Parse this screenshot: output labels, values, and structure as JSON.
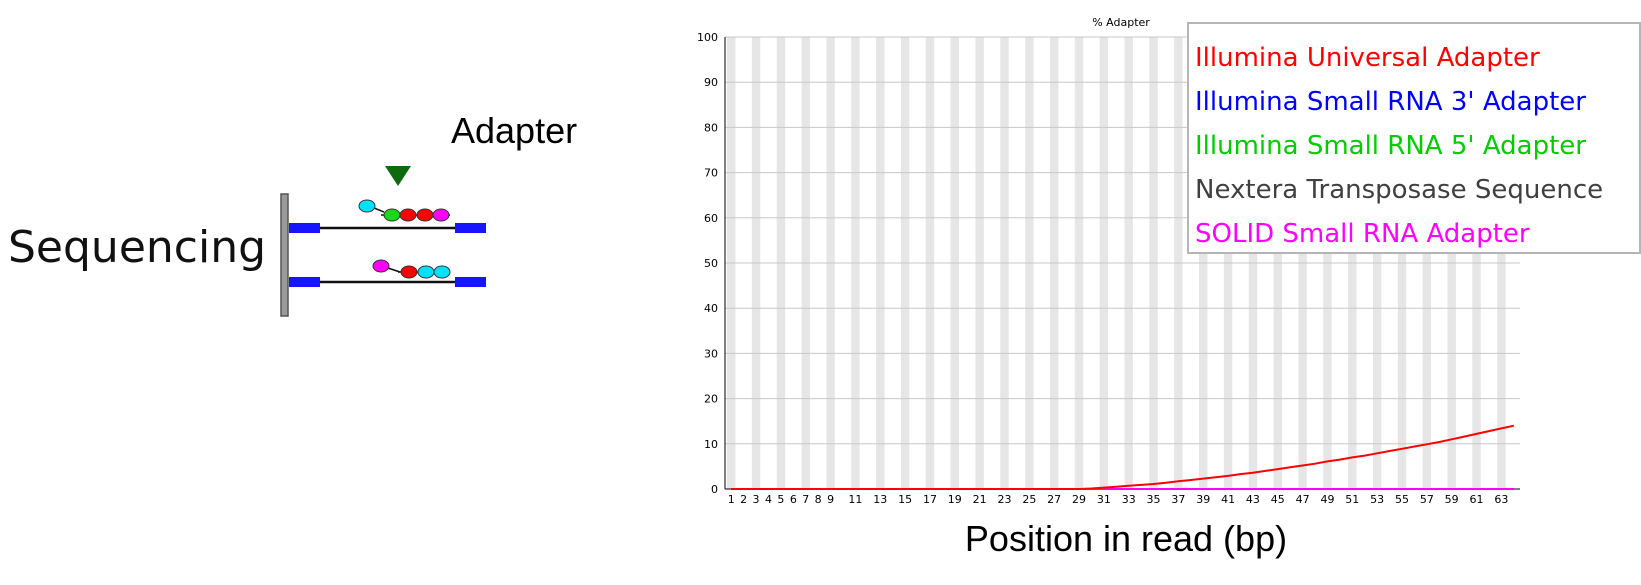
{
  "schematic": {
    "sequencing_label": "Sequencing",
    "adapter_label": "Adapter",
    "colors": {
      "frame": "#7a7a7a",
      "block": "#1515ff",
      "strand": "#111111",
      "marker": "#0d6b0d",
      "beads": [
        "#ff0000",
        "#19d819",
        "#00e0ff",
        "#ff00ff"
      ]
    }
  },
  "chart_data": {
    "type": "line",
    "title": "% Adapter",
    "xlabel": "Position in read (bp)",
    "ylabel": "",
    "ylim": [
      0,
      100
    ],
    "yticks": [
      0,
      10,
      20,
      30,
      40,
      50,
      60,
      70,
      80,
      90,
      100
    ],
    "x": [
      1,
      2,
      3,
      4,
      5,
      6,
      7,
      8,
      9,
      10,
      11,
      12,
      13,
      14,
      15,
      16,
      17,
      18,
      19,
      20,
      21,
      22,
      23,
      24,
      25,
      26,
      27,
      28,
      29,
      30,
      31,
      32,
      33,
      34,
      35,
      36,
      37,
      38,
      39,
      40,
      41,
      42,
      43,
      44,
      45,
      46,
      47,
      48,
      49,
      50,
      51,
      52,
      53,
      54,
      55,
      56,
      57,
      58,
      59,
      60,
      61,
      62,
      63,
      64
    ],
    "xtick_labels": [
      "1",
      "2",
      "3",
      "4",
      "5",
      "6",
      "7",
      "8",
      "9",
      "11",
      "13",
      "15",
      "17",
      "19",
      "21",
      "23",
      "25",
      "27",
      "29",
      "31",
      "33",
      "35",
      "37",
      "39",
      "41",
      "43",
      "45",
      "47",
      "49",
      "51",
      "53",
      "55",
      "57",
      "59",
      "61",
      "63"
    ],
    "grid": true,
    "legend_position": "top-right",
    "series": [
      {
        "name": "Illumina Universal Adapter",
        "color": "#ff0000",
        "values": [
          0,
          0,
          0,
          0,
          0,
          0,
          0,
          0,
          0,
          0,
          0,
          0,
          0,
          0,
          0,
          0,
          0,
          0,
          0,
          0,
          0,
          0,
          0,
          0,
          0,
          0,
          0,
          0,
          0,
          0.1,
          0.3,
          0.5,
          0.7,
          0.9,
          1.1,
          1.4,
          1.7,
          2.0,
          2.3,
          2.6,
          2.9,
          3.3,
          3.6,
          4.0,
          4.4,
          4.8,
          5.2,
          5.6,
          6.1,
          6.5,
          7.0,
          7.4,
          7.9,
          8.4,
          8.9,
          9.4,
          9.9,
          10.4,
          11.0,
          11.6,
          12.2,
          12.8,
          13.4,
          14.0
        ]
      },
      {
        "name": "Illumina Small RNA 3' Adapter",
        "color": "#0000ff",
        "values": [
          0,
          0,
          0,
          0,
          0,
          0,
          0,
          0,
          0,
          0,
          0,
          0,
          0,
          0,
          0,
          0,
          0,
          0,
          0,
          0,
          0,
          0,
          0,
          0,
          0,
          0,
          0,
          0,
          0,
          0,
          0,
          0,
          0,
          0,
          0,
          0,
          0,
          0,
          0,
          0,
          0,
          0,
          0,
          0,
          0,
          0,
          0,
          0,
          0,
          0,
          0,
          0,
          0,
          0,
          0,
          0,
          0,
          0,
          0,
          0,
          0,
          0,
          0,
          0
        ]
      },
      {
        "name": "Illumina Small RNA 5' Adapter",
        "color": "#00cc00",
        "values": [
          0,
          0,
          0,
          0,
          0,
          0,
          0,
          0,
          0,
          0,
          0,
          0,
          0,
          0,
          0,
          0,
          0,
          0,
          0,
          0,
          0,
          0,
          0,
          0,
          0,
          0,
          0,
          0,
          0,
          0,
          0,
          0,
          0,
          0,
          0,
          0,
          0,
          0,
          0,
          0,
          0,
          0,
          0,
          0,
          0,
          0,
          0,
          0,
          0,
          0,
          0,
          0,
          0,
          0,
          0,
          0,
          0,
          0,
          0,
          0,
          0,
          0,
          0,
          0
        ]
      },
      {
        "name": "Nextera Transposase Sequence",
        "color": "#404040",
        "values": [
          0,
          0,
          0,
          0,
          0,
          0,
          0,
          0,
          0,
          0,
          0,
          0,
          0,
          0,
          0,
          0,
          0,
          0,
          0,
          0,
          0,
          0,
          0,
          0,
          0,
          0,
          0,
          0,
          0,
          0,
          0,
          0,
          0,
          0,
          0,
          0,
          0,
          0,
          0,
          0,
          0,
          0,
          0,
          0,
          0,
          0,
          0,
          0,
          0,
          0,
          0,
          0,
          0,
          0,
          0,
          0,
          0,
          0,
          0,
          0,
          0,
          0,
          0,
          0
        ]
      },
      {
        "name": "SOLID Small RNA Adapter",
        "color": "#ff00ff",
        "values": [
          0,
          0,
          0,
          0,
          0,
          0,
          0,
          0,
          0,
          0,
          0,
          0,
          0,
          0,
          0,
          0,
          0,
          0,
          0,
          0,
          0,
          0,
          0,
          0,
          0,
          0,
          0,
          0,
          0,
          0,
          0,
          0,
          0,
          0,
          0,
          0,
          0,
          0,
          0,
          0,
          0,
          0,
          0,
          0,
          0,
          0,
          0,
          0,
          0,
          0,
          0,
          0,
          0,
          0,
          0,
          0,
          0,
          0,
          0,
          0,
          0,
          0,
          0,
          0
        ]
      }
    ]
  }
}
